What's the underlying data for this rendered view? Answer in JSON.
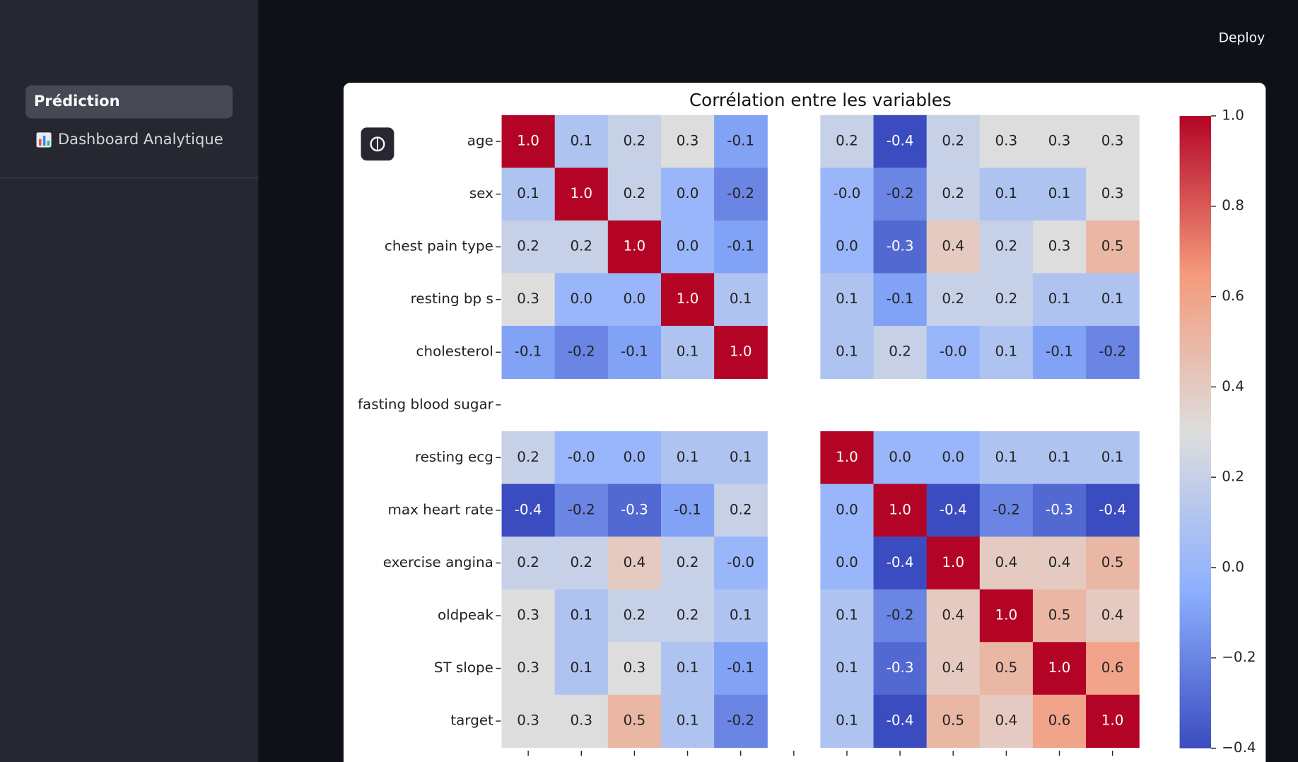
{
  "sidebar": {
    "items": [
      "Prédiction",
      "Dashboard Analytique"
    ]
  },
  "header": {
    "deploy": "Deploy"
  },
  "chart_data": {
    "type": "heatmap",
    "title": "Corrélation entre les variables",
    "categories": [
      "age",
      "sex",
      "chest pain type",
      "resting bp s",
      "cholesterol",
      "fasting blood sugar",
      "resting ecg",
      "max heart rate",
      "exercise angina",
      "oldpeak",
      "ST slope",
      "target"
    ],
    "values": [
      [
        1.0,
        0.1,
        0.2,
        0.3,
        -0.1,
        null,
        0.2,
        -0.4,
        0.2,
        0.3,
        0.3,
        0.3
      ],
      [
        0.1,
        1.0,
        0.2,
        0.0,
        -0.2,
        null,
        -0.0,
        -0.2,
        0.2,
        0.1,
        0.1,
        0.3
      ],
      [
        0.2,
        0.2,
        1.0,
        0.0,
        -0.1,
        null,
        0.0,
        -0.3,
        0.4,
        0.2,
        0.3,
        0.5
      ],
      [
        0.3,
        0.0,
        0.0,
        1.0,
        0.1,
        null,
        0.1,
        -0.1,
        0.2,
        0.2,
        0.1,
        0.1
      ],
      [
        -0.1,
        -0.2,
        -0.1,
        0.1,
        1.0,
        null,
        0.1,
        0.2,
        -0.0,
        0.1,
        -0.1,
        -0.2
      ],
      [
        null,
        null,
        null,
        null,
        null,
        null,
        null,
        null,
        null,
        null,
        null,
        null
      ],
      [
        0.2,
        -0.0,
        0.0,
        0.1,
        0.1,
        null,
        1.0,
        0.0,
        0.0,
        0.1,
        0.1,
        0.1
      ],
      [
        -0.4,
        -0.2,
        -0.3,
        -0.1,
        0.2,
        null,
        0.0,
        1.0,
        -0.4,
        -0.2,
        -0.3,
        -0.4
      ],
      [
        0.2,
        0.2,
        0.4,
        0.2,
        -0.0,
        null,
        0.0,
        -0.4,
        1.0,
        0.4,
        0.4,
        0.5
      ],
      [
        0.3,
        0.1,
        0.2,
        0.2,
        0.1,
        null,
        0.1,
        -0.2,
        0.4,
        1.0,
        0.5,
        0.4
      ],
      [
        0.3,
        0.1,
        0.3,
        0.1,
        -0.1,
        null,
        0.1,
        -0.3,
        0.4,
        0.5,
        1.0,
        0.6
      ],
      [
        0.3,
        0.3,
        0.5,
        0.1,
        -0.2,
        null,
        0.1,
        -0.4,
        0.5,
        0.4,
        0.6,
        1.0
      ]
    ],
    "value_labels": [
      [
        "1.0",
        "0.1",
        "0.2",
        "0.3",
        "-0.1",
        null,
        "0.2",
        "-0.4",
        "0.2",
        "0.3",
        "0.3",
        "0.3"
      ],
      [
        "0.1",
        "1.0",
        "0.2",
        "0.0",
        "-0.2",
        null,
        "-0.0",
        "-0.2",
        "0.2",
        "0.1",
        "0.1",
        "0.3"
      ],
      [
        "0.2",
        "0.2",
        "1.0",
        "0.0",
        "-0.1",
        null,
        "0.0",
        "-0.3",
        "0.4",
        "0.2",
        "0.3",
        "0.5"
      ],
      [
        "0.3",
        "0.0",
        "0.0",
        "1.0",
        "0.1",
        null,
        "0.1",
        "-0.1",
        "0.2",
        "0.2",
        "0.1",
        "0.1"
      ],
      [
        "-0.1",
        "-0.2",
        "-0.1",
        "0.1",
        "1.0",
        null,
        "0.1",
        "0.2",
        "-0.0",
        "0.1",
        "-0.1",
        "-0.2"
      ],
      [
        null,
        null,
        null,
        null,
        null,
        null,
        null,
        null,
        null,
        null,
        null,
        null
      ],
      [
        "0.2",
        "-0.0",
        "0.0",
        "0.1",
        "0.1",
        null,
        "1.0",
        "0.0",
        "0.0",
        "0.1",
        "0.1",
        "0.1"
      ],
      [
        "-0.4",
        "-0.2",
        "-0.3",
        "-0.1",
        "0.2",
        null,
        "0.0",
        "1.0",
        "-0.4",
        "-0.2",
        "-0.3",
        "-0.4"
      ],
      [
        "0.2",
        "0.2",
        "0.4",
        "0.2",
        "-0.0",
        null,
        "0.0",
        "-0.4",
        "1.0",
        "0.4",
        "0.4",
        "0.5"
      ],
      [
        "0.3",
        "0.1",
        "0.2",
        "0.2",
        "0.1",
        null,
        "0.1",
        "-0.2",
        "0.4",
        "1.0",
        "0.5",
        "0.4"
      ],
      [
        "0.3",
        "0.1",
        "0.3",
        "0.1",
        "-0.1",
        null,
        "0.1",
        "-0.3",
        "0.4",
        "0.5",
        "1.0",
        "0.6"
      ],
      [
        "0.3",
        "0.3",
        "0.5",
        "0.1",
        "-0.2",
        null,
        "0.1",
        "-0.4",
        "0.5",
        "0.4",
        "0.6",
        "1.0"
      ]
    ],
    "colormap": [
      "#3b4cc0",
      "#8db0fe",
      "#dddddd",
      "#f49a7b",
      "#b40426"
    ],
    "clim": [
      -0.4,
      1.0
    ],
    "cticks": [
      {
        "value": -0.4,
        "label": "−0.4"
      },
      {
        "value": -0.2,
        "label": "−0.2"
      },
      {
        "value": 0,
        "label": "0.0"
      },
      0.2,
      0.4,
      0.6,
      0.8,
      {
        "value": 1,
        "label": "1.0"
      }
    ]
  }
}
